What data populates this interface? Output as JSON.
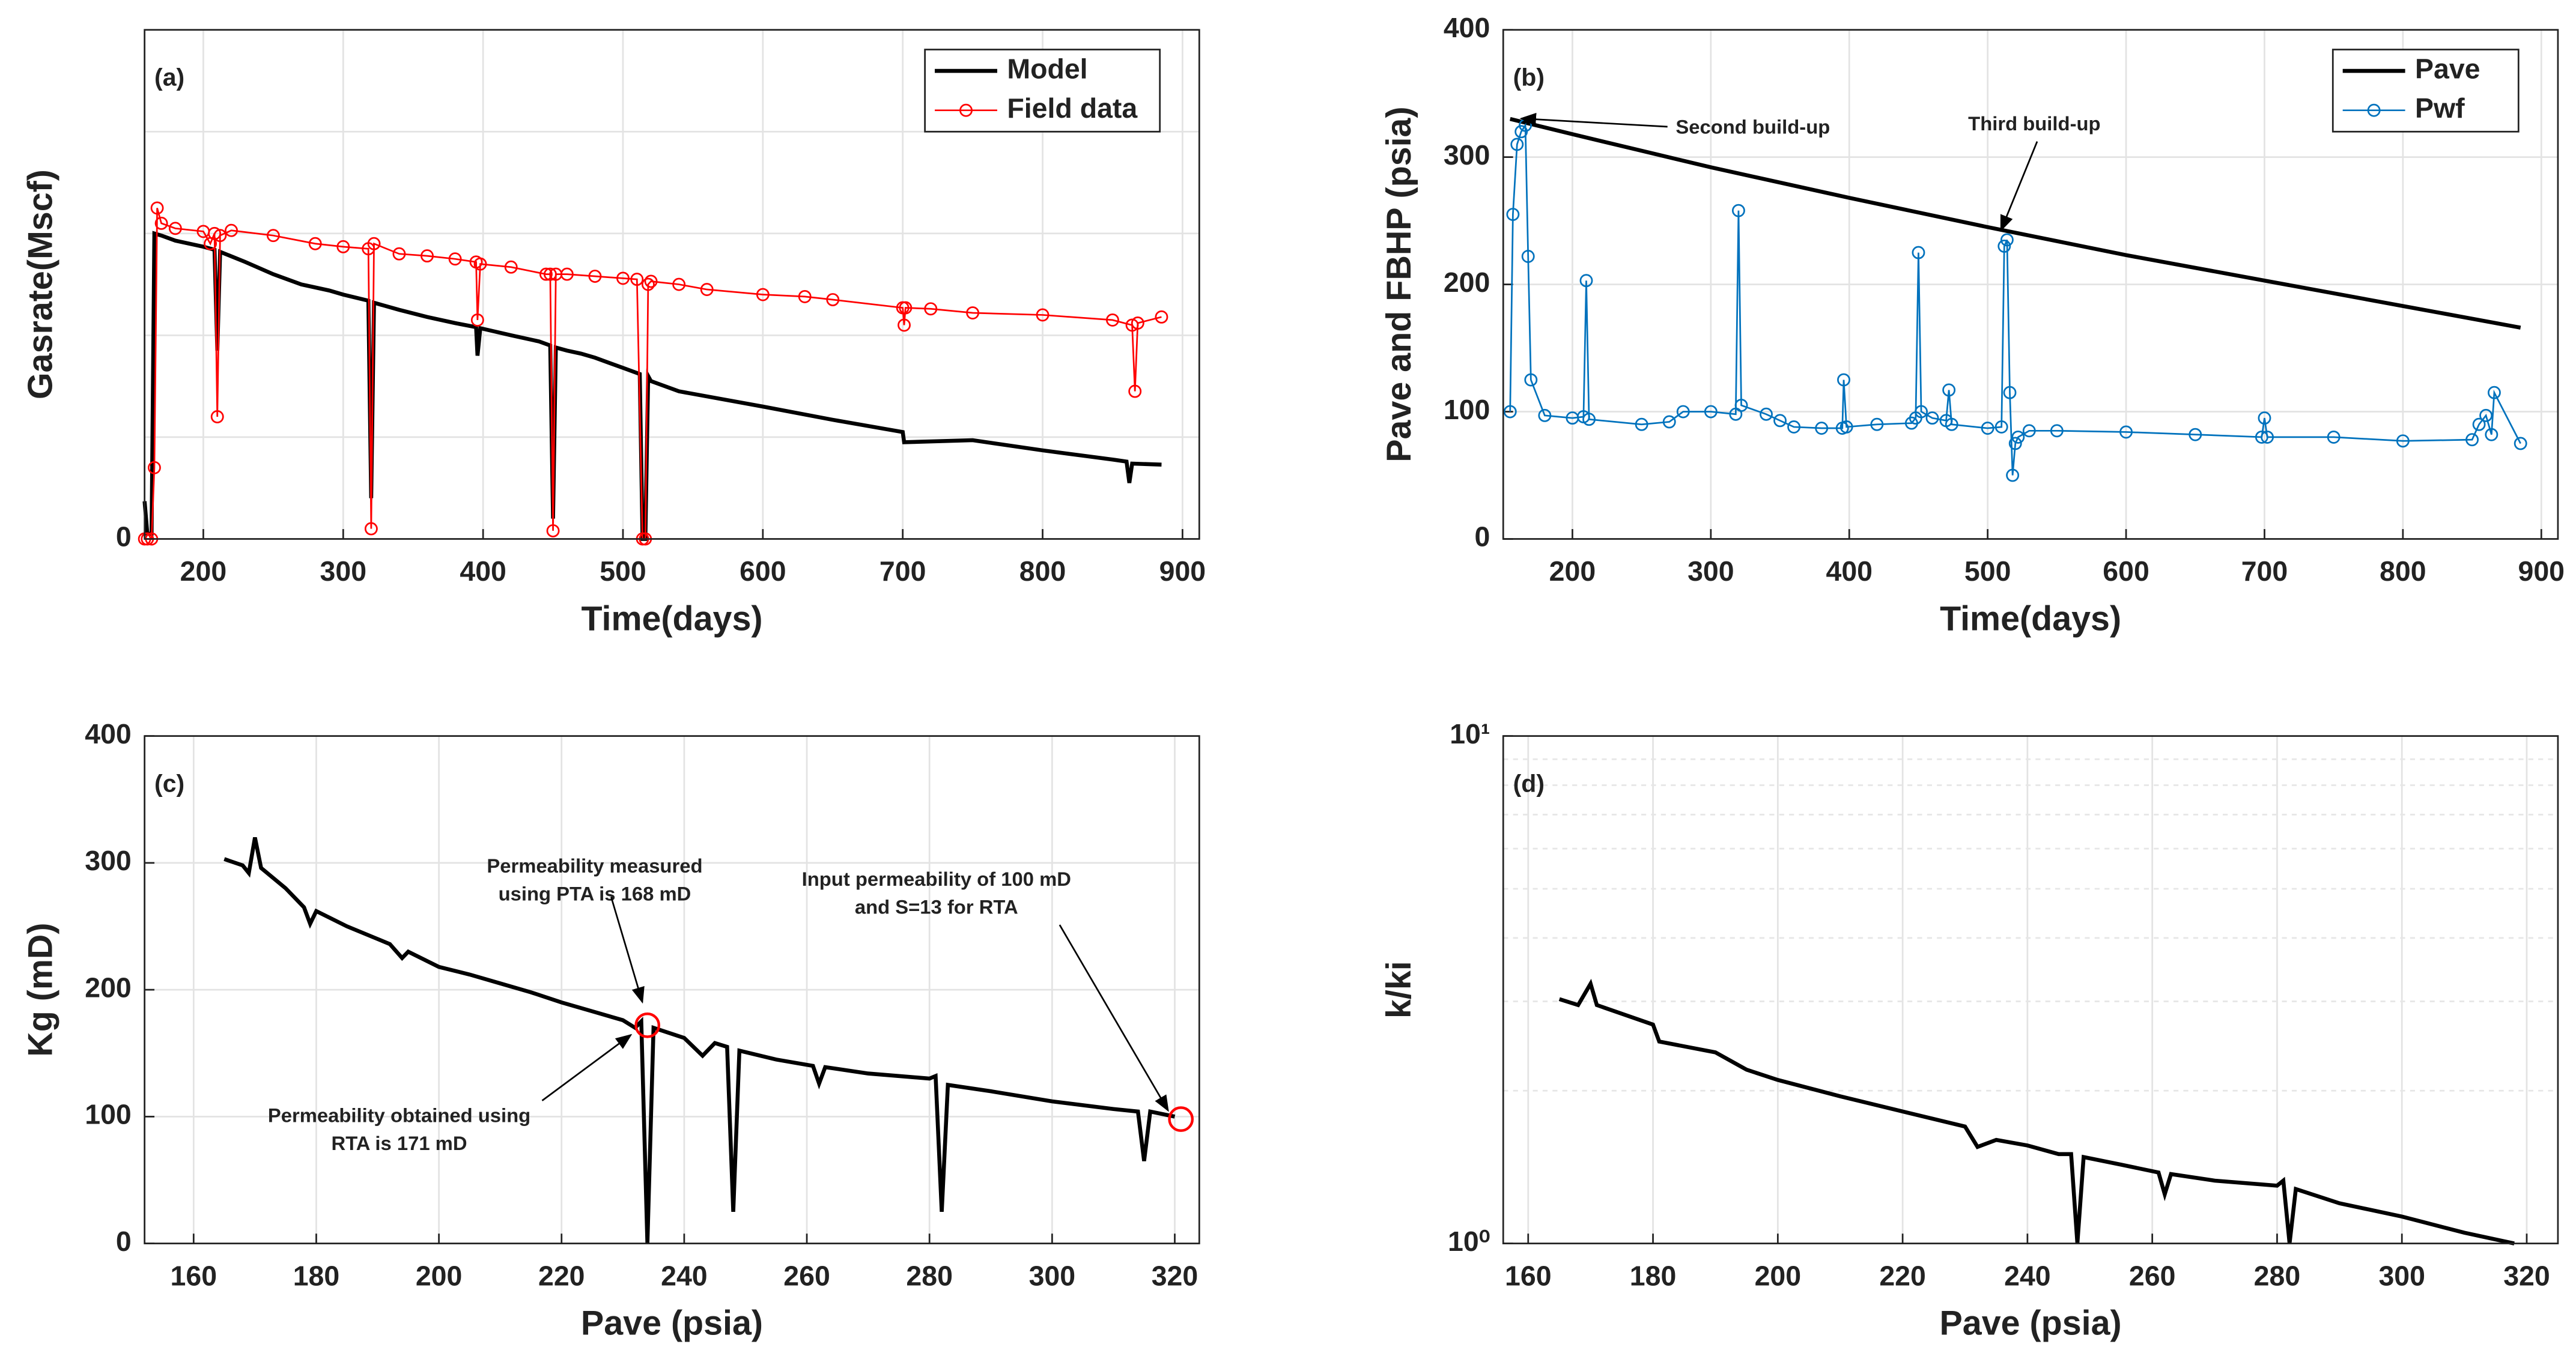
{
  "chart_data": [
    {
      "type": "line",
      "panel_label": "(a)",
      "xlabel": "Time(days)",
      "ylabel": "Gasrate(Mscf)",
      "xlim": [
        158,
        912
      ],
      "xticks": [
        200,
        300,
        400,
        500,
        600,
        700,
        800,
        900
      ],
      "ylim": [
        0,
        5
      ],
      "yticks": [
        0
      ],
      "ygrid": [
        1,
        2,
        3,
        4,
        5
      ],
      "grid": true,
      "legend": "top-right",
      "series": [
        {
          "name": "Model",
          "color": "#000000",
          "marker": "none",
          "x": [
            158,
            160,
            163,
            165,
            170,
            180,
            200,
            208,
            210,
            212,
            230,
            250,
            270,
            290,
            300,
            318,
            320,
            322,
            340,
            360,
            380,
            395,
            396,
            398,
            420,
            440,
            448,
            450,
            452,
            460,
            470,
            480,
            500,
            512,
            514,
            516,
            518,
            520,
            540,
            560,
            600,
            650,
            700,
            701,
            750,
            800,
            850,
            860,
            862,
            864,
            885
          ],
          "values": [
            0.37,
            0.05,
            0.05,
            3.0,
            2.98,
            2.93,
            2.87,
            2.84,
            1.85,
            2.82,
            2.72,
            2.6,
            2.5,
            2.44,
            2.4,
            2.34,
            0.4,
            2.32,
            2.25,
            2.18,
            2.12,
            2.08,
            1.8,
            2.07,
            2.0,
            1.94,
            1.9,
            0.2,
            1.88,
            1.85,
            1.82,
            1.78,
            1.68,
            1.62,
            0,
            0,
            1.6,
            1.55,
            1.45,
            1.4,
            1.3,
            1.17,
            1.05,
            0.95,
            0.97,
            0.87,
            0.78,
            0.76,
            0.55,
            0.74,
            0.73
          ]
        },
        {
          "name": "Field data",
          "color": "#ff0000",
          "marker": "o",
          "x": [
            158,
            160,
            163,
            165,
            167,
            170,
            180,
            200,
            205,
            208,
            210,
            212,
            220,
            250,
            280,
            300,
            318,
            320,
            322,
            340,
            360,
            380,
            395,
            396,
            398,
            420,
            445,
            448,
            450,
            452,
            460,
            480,
            500,
            510,
            514,
            516,
            518,
            520,
            540,
            560,
            600,
            630,
            650,
            700,
            701,
            702,
            720,
            750,
            800,
            850,
            864,
            866,
            868,
            885
          ],
          "values": [
            0,
            0,
            0,
            0.7,
            3.25,
            3.1,
            3.05,
            3.02,
            2.9,
            3.0,
            1.2,
            2.98,
            3.03,
            2.98,
            2.9,
            2.87,
            2.85,
            0.1,
            2.9,
            2.8,
            2.78,
            2.75,
            2.72,
            2.15,
            2.7,
            2.67,
            2.6,
            2.6,
            0.08,
            2.6,
            2.6,
            2.58,
            2.56,
            2.55,
            0,
            0,
            2.5,
            2.53,
            2.5,
            2.45,
            2.4,
            2.38,
            2.35,
            2.27,
            2.1,
            2.27,
            2.26,
            2.22,
            2.2,
            2.15,
            2.1,
            1.45,
            2.12,
            2.18
          ]
        }
      ]
    },
    {
      "type": "line",
      "panel_label": "(b)",
      "xlabel": "Time(days)",
      "ylabel": "Pave and FBHP (psia)",
      "xlim": [
        150,
        912
      ],
      "xticks": [
        200,
        300,
        400,
        500,
        600,
        700,
        800,
        900
      ],
      "ylim": [
        0,
        400
      ],
      "yticks": [
        0,
        100,
        200,
        300,
        400
      ],
      "grid": true,
      "legend": "top-right",
      "annotations": [
        {
          "lines": [
            "Second build-up"
          ]
        },
        {
          "lines": [
            "Third build-up"
          ]
        }
      ],
      "series": [
        {
          "name": "Pave",
          "color": "#000000",
          "marker": "none",
          "x": [
            155,
            200,
            300,
            400,
            500,
            600,
            700,
            800,
            885
          ],
          "values": [
            330,
            318,
            292,
            268,
            245,
            223,
            203,
            183,
            166
          ]
        },
        {
          "name": "Pwf",
          "color": "#0072bd",
          "marker": "o",
          "x": [
            155,
            157,
            160,
            163,
            166,
            168,
            170,
            180,
            200,
            208,
            210,
            212,
            250,
            270,
            280,
            300,
            318,
            320,
            322,
            340,
            350,
            360,
            380,
            395,
            396,
            398,
            420,
            445,
            448,
            450,
            452,
            460,
            470,
            472,
            474,
            500,
            510,
            512,
            514,
            516,
            518,
            520,
            522,
            530,
            550,
            600,
            650,
            698,
            700,
            702,
            750,
            800,
            850,
            855,
            860,
            864,
            866,
            885
          ],
          "values": [
            100,
            255,
            310,
            320,
            325,
            222,
            125,
            97,
            95,
            96,
            203,
            94,
            90,
            92,
            100,
            100,
            98,
            258,
            105,
            98,
            93,
            88,
            87,
            87,
            125,
            88,
            90,
            91,
            95,
            225,
            100,
            95,
            93,
            117,
            90,
            87,
            88,
            230,
            235,
            115,
            50,
            75,
            80,
            85,
            85,
            84,
            82,
            80,
            95,
            80,
            80,
            77,
            78,
            90,
            97,
            82,
            115,
            75
          ]
        }
      ]
    },
    {
      "type": "line",
      "panel_label": "(c)",
      "xlabel": "Pave (psia)",
      "ylabel": "Kg (mD)",
      "xlim": [
        152,
        324
      ],
      "xticks": [
        160,
        180,
        200,
        220,
        240,
        260,
        280,
        300,
        320
      ],
      "ylim": [
        0,
        400
      ],
      "yticks": [
        0,
        100,
        200,
        300,
        400
      ],
      "grid": true,
      "annotations": [
        {
          "lines": [
            "Permeability measured",
            "using PTA is 168 mD"
          ]
        },
        {
          "lines": [
            "Permeability obtained using",
            "RTA is 171 mD"
          ]
        },
        {
          "lines": [
            "Input permeability of 100 mD",
            "and S=13 for RTA"
          ]
        }
      ],
      "highlight_points": {
        "color": "#ff0000",
        "x": [
          234,
          321
        ],
        "values": [
          172,
          98
        ]
      },
      "series": [
        {
          "color": "#000000",
          "x": [
            165,
            168,
            169,
            170,
            171,
            175,
            178,
            179,
            180,
            185,
            190,
            192,
            194,
            195,
            200,
            205,
            210,
            215,
            220,
            225,
            230,
            232,
            233,
            234,
            235,
            240,
            243,
            245,
            247,
            248,
            249,
            255,
            261,
            262,
            263,
            270,
            280,
            281,
            282,
            283,
            290,
            300,
            310,
            314,
            315,
            316,
            320
          ],
          "values": [
            303,
            298,
            292,
            320,
            296,
            280,
            265,
            252,
            262,
            250,
            240,
            236,
            225,
            230,
            218,
            212,
            205,
            198,
            190,
            183,
            176,
            170,
            175,
            0,
            170,
            162,
            148,
            158,
            155,
            25,
            152,
            145,
            140,
            126,
            139,
            134,
            130,
            132,
            25,
            125,
            120,
            112,
            106,
            104,
            65,
            104,
            100
          ]
        }
      ]
    },
    {
      "type": "line",
      "panel_label": "(d)",
      "xlabel": "Pave (psia)",
      "ylabel": "k/ki",
      "xlim": [
        156,
        325
      ],
      "xticks": [
        160,
        180,
        200,
        220,
        240,
        260,
        280,
        300,
        320
      ],
      "ylim": [
        1,
        10
      ],
      "log_y": true,
      "yticks": [
        {
          "value": 1,
          "label": "10⁰"
        },
        {
          "value": 10,
          "label": "10¹"
        }
      ],
      "grid": true,
      "series": [
        {
          "color": "#000000",
          "x": [
            165,
            168,
            170,
            171,
            180,
            181,
            190,
            195,
            200,
            210,
            220,
            230,
            232,
            235,
            240,
            245,
            247,
            248,
            249,
            255,
            261,
            262,
            263,
            270,
            280,
            281,
            282,
            283,
            290,
            300,
            310,
            318
          ],
          "values": [
            3.03,
            2.95,
            3.25,
            2.95,
            2.7,
            2.5,
            2.38,
            2.2,
            2.1,
            1.95,
            1.82,
            1.7,
            1.55,
            1.6,
            1.56,
            1.5,
            1.5,
            1.0,
            1.48,
            1.43,
            1.38,
            1.25,
            1.37,
            1.33,
            1.3,
            1.33,
            1.0,
            1.28,
            1.2,
            1.13,
            1.05,
            1.0
          ]
        }
      ]
    }
  ]
}
